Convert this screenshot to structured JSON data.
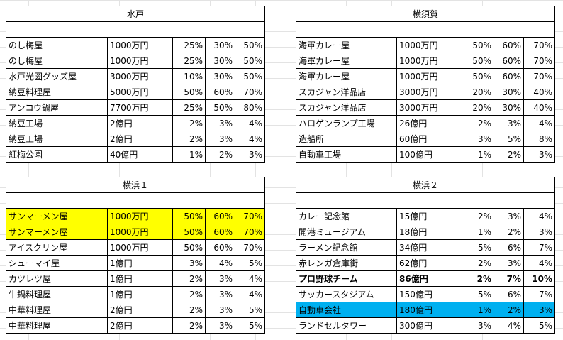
{
  "colors": {
    "highlight_yellow": "#ffff00",
    "highlight_cyan": "#00b0f0"
  },
  "tables": [
    {
      "title": "水戸",
      "rows": [
        [
          "のし梅屋",
          "1000万円",
          "25%",
          "30%",
          "50%"
        ],
        [
          "のし梅屋",
          "1000万円",
          "25%",
          "30%",
          "50%"
        ],
        [
          "水戸光圀グッズ屋",
          "3000万円",
          "10%",
          "30%",
          "50%"
        ],
        [
          "納豆料理屋",
          "5000万円",
          "50%",
          "60%",
          "70%"
        ],
        [
          "アンコウ鍋屋",
          "7700万円",
          "25%",
          "50%",
          "80%"
        ],
        [
          "納豆工場",
          "2億円",
          "2%",
          "3%",
          "4%"
        ],
        [
          "納豆工場",
          "2億円",
          "2%",
          "3%",
          "4%"
        ],
        [
          "紅梅公園",
          "40億円",
          "1%",
          "2%",
          "3%"
        ]
      ]
    },
    {
      "title": "横須賀",
      "rows": [
        [
          "海軍カレー屋",
          "1000万円",
          "50%",
          "60%",
          "70%"
        ],
        [
          "海軍カレー屋",
          "1000万円",
          "50%",
          "60%",
          "70%"
        ],
        [
          "海軍カレー屋",
          "1000万円",
          "50%",
          "60%",
          "70%"
        ],
        [
          "スカジャン洋品店",
          "3000万円",
          "20%",
          "30%",
          "40%"
        ],
        [
          "スカジャン洋品店",
          "3000万円",
          "20%",
          "30%",
          "40%"
        ],
        [
          "ハロゲンランプ工場",
          "26億円",
          "2%",
          "3%",
          "4%"
        ],
        [
          "造船所",
          "60億円",
          "3%",
          "5%",
          "8%"
        ],
        [
          "自動車工場",
          "100億円",
          "1%",
          "2%",
          "3%"
        ]
      ]
    },
    {
      "title": "横浜１",
      "rows": [
        [
          "サンマーメン屋",
          "1000万円",
          "50%",
          "60%",
          "70%"
        ],
        [
          "サンマーメン屋",
          "1000万円",
          "50%",
          "60%",
          "70%"
        ],
        [
          "アイスクリン屋",
          "1000万円",
          "50%",
          "60%",
          "70%"
        ],
        [
          "シューマイ屋",
          "1億円",
          "3%",
          "4%",
          "5%"
        ],
        [
          "カツレツ屋",
          "1億円",
          "2%",
          "3%",
          "4%"
        ],
        [
          "牛鍋料理屋",
          "1億円",
          "2%",
          "3%",
          "4%"
        ],
        [
          "中華料理屋",
          "2億円",
          "2%",
          "3%",
          "5%"
        ],
        [
          "中華料理屋",
          "2億円",
          "2%",
          "3%",
          "5%"
        ]
      ]
    },
    {
      "title": "横浜２",
      "rows": [
        [
          "カレー記念館",
          "15億円",
          "2%",
          "3%",
          "4%"
        ],
        [
          "開港ミュージアム",
          "18億円",
          "1%",
          "2%",
          "3%"
        ],
        [
          "ラーメン記念館",
          "34億円",
          "5%",
          "6%",
          "7%"
        ],
        [
          "赤レンガ倉庫街",
          "62億円",
          "2%",
          "3%",
          "4%"
        ],
        [
          "プロ野球チーム",
          "86億円",
          "2%",
          "7%",
          "10%"
        ],
        [
          "サッカースタジアム",
          "150億円",
          "5%",
          "6%",
          "7%"
        ],
        [
          "自動車会社",
          "180億円",
          "1%",
          "2%",
          "3%"
        ],
        [
          "ランドセルタワー",
          "300億円",
          "3%",
          "4%",
          "5%"
        ]
      ]
    }
  ]
}
